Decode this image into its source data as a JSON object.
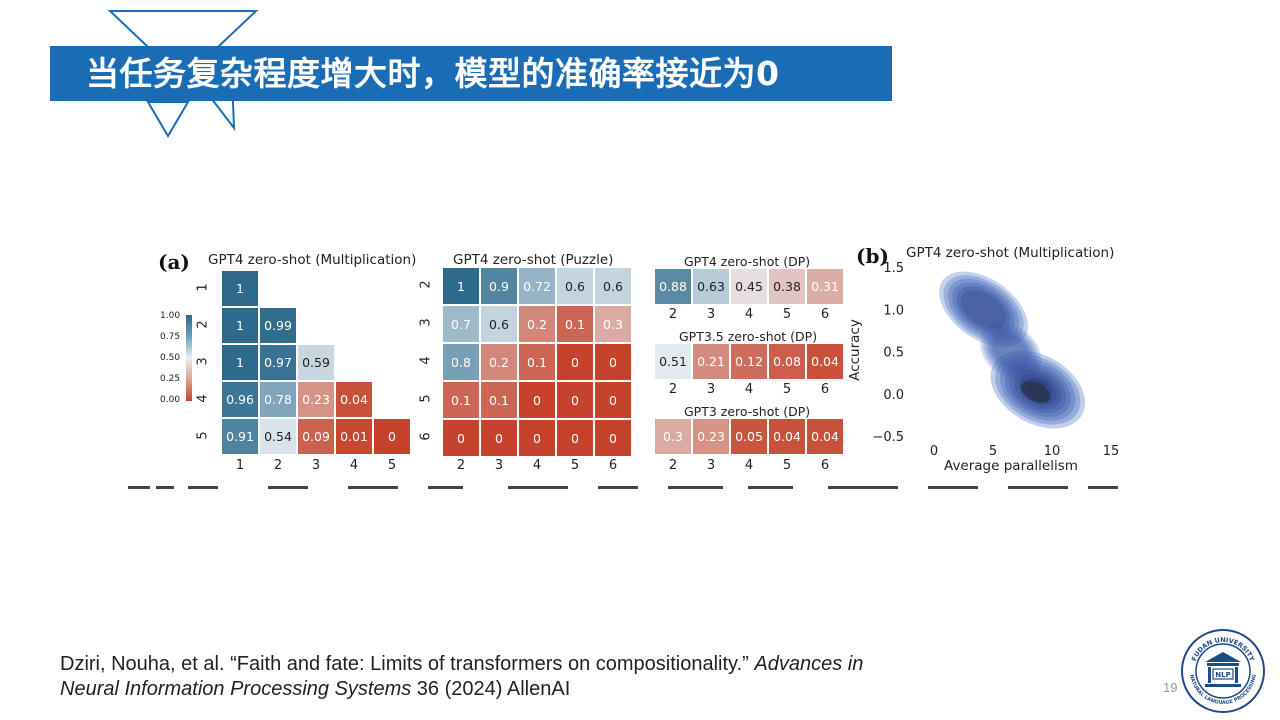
{
  "slide": {
    "title": "当任务复杂程度增大时，模型的准确率接近为0",
    "page_number": "19",
    "citation": {
      "part1": "Dziri, Nouha, et al. “Faith and fate: Limits of transformers on compositionality.” ",
      "italic1": "Advances in",
      "italic2": "Neural Information Processing Systems",
      "part2": " 36 (2024) AllenAI"
    },
    "logo_text": {
      "top": "FUDAN UNIVERSITY",
      "bottom": "NATURAL LANGUAGE PROCESSING",
      "center": "NLP"
    }
  },
  "colors": {
    "banner": "#1a6db5",
    "high": "#2e6a8c",
    "mid": "#e8eef2",
    "low": "#c5432c",
    "kde": "#4a72c4"
  },
  "labels": {
    "a": "(a)",
    "b": "(b)"
  },
  "colorbar": {
    "ticks": [
      "1.00",
      "0.75",
      "0.50",
      "0.25",
      "0.00"
    ]
  },
  "chart_data": [
    {
      "type": "heatmap",
      "title": "GPT4 zero-shot (Multiplication)",
      "x": [
        "1",
        "2",
        "3",
        "4",
        "5"
      ],
      "y": [
        "1",
        "2",
        "3",
        "4",
        "5"
      ],
      "values": [
        [
          1,
          null,
          null,
          null,
          null
        ],
        [
          1,
          0.99,
          null,
          null,
          null
        ],
        [
          1,
          0.97,
          0.59,
          null,
          null
        ],
        [
          0.96,
          0.78,
          0.23,
          0.04,
          null
        ],
        [
          0.91,
          0.54,
          0.09,
          0.01,
          0
        ]
      ],
      "value_labels": [
        [
          "1",
          "",
          "",
          "",
          ""
        ],
        [
          "1",
          "0.99",
          "",
          "",
          ""
        ],
        [
          "1",
          "0.97",
          "0.59",
          "",
          ""
        ],
        [
          "0.96",
          "0.78",
          "0.23",
          "0.04",
          ""
        ],
        [
          "0.91",
          "0.54",
          "0.09",
          "0.01",
          "0"
        ]
      ],
      "colorbar_range": [
        0,
        1
      ]
    },
    {
      "type": "heatmap",
      "title": "GPT4 zero-shot (Puzzle)",
      "x": [
        "2",
        "3",
        "4",
        "5",
        "6"
      ],
      "y": [
        "2",
        "3",
        "4",
        "5",
        "6"
      ],
      "values": [
        [
          1,
          0.9,
          0.72,
          0.6,
          0.6
        ],
        [
          0.7,
          0.6,
          0.2,
          0.1,
          0.3
        ],
        [
          0.8,
          0.2,
          0.1,
          0,
          0
        ],
        [
          0.1,
          0.1,
          0,
          0,
          0
        ],
        [
          0,
          0,
          0,
          0,
          0
        ]
      ],
      "value_labels": [
        [
          "1",
          "0.9",
          "0.72",
          "0.6",
          "0.6"
        ],
        [
          "0.7",
          "0.6",
          "0.2",
          "0.1",
          "0.3"
        ],
        [
          "0.8",
          "0.2",
          "0.1",
          "0",
          "0"
        ],
        [
          "0.1",
          "0.1",
          "0",
          "0",
          "0"
        ],
        [
          "0",
          "0",
          "0",
          "0",
          "0"
        ]
      ]
    },
    {
      "type": "heatmap",
      "title": "GPT4 zero-shot (DP)",
      "x": [
        "2",
        "3",
        "4",
        "5",
        "6"
      ],
      "values": [
        [
          0.88,
          0.63,
          0.45,
          0.38,
          0.31
        ]
      ],
      "value_labels": [
        [
          "0.88",
          "0.63",
          "0.45",
          "0.38",
          "0.31"
        ]
      ]
    },
    {
      "type": "heatmap",
      "title": "GPT3.5 zero-shot (DP)",
      "x": [
        "2",
        "3",
        "4",
        "5",
        "6"
      ],
      "values": [
        [
          0.51,
          0.21,
          0.12,
          0.08,
          0.04
        ]
      ],
      "value_labels": [
        [
          "0.51",
          "0.21",
          "0.12",
          "0.08",
          "0.04"
        ]
      ]
    },
    {
      "type": "heatmap",
      "title": "GPT3 zero-shot (DP)",
      "x": [
        "2",
        "3",
        "4",
        "5",
        "6"
      ],
      "values": [
        [
          0.3,
          0.23,
          0.05,
          0.04,
          0.04
        ]
      ],
      "value_labels": [
        [
          "0.3",
          "0.23",
          "0.05",
          "0.04",
          "0.04"
        ]
      ]
    },
    {
      "type": "scatter",
      "title": "GPT4 zero-shot (Multiplication)",
      "xlabel": "Average parallelism",
      "ylabel": "Accuracy",
      "xlim": [
        -2,
        15
      ],
      "ylim": [
        -0.5,
        1.5
      ],
      "xticks": [
        "0",
        "5",
        "10",
        "15"
      ],
      "yticks": [
        "1.5",
        "1.0",
        "0.5",
        "0.0",
        "−0.5"
      ],
      "density_modes": [
        {
          "x": 3.0,
          "y": 1.2,
          "level": 0.45
        },
        {
          "x": 4.5,
          "y": 0.9,
          "level": 0.55
        },
        {
          "x": 9.0,
          "y": 0.05,
          "level": 1.0
        }
      ]
    }
  ]
}
